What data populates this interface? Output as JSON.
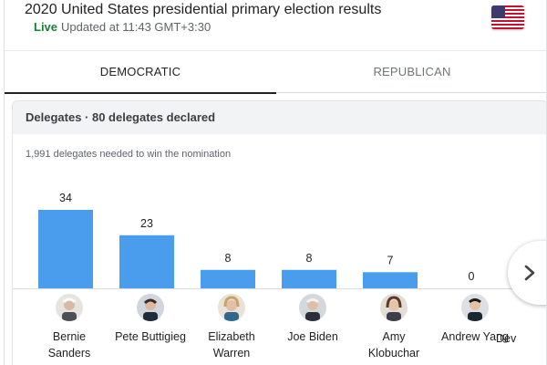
{
  "header": {
    "title": "2020 United States presidential primary election results",
    "live_label": "Live",
    "updated_text": "Updated at 11:43 GMT+3:30",
    "flag_icon": "us-flag-icon"
  },
  "tabs": [
    {
      "label": "DEMOCRATIC",
      "active": true
    },
    {
      "label": "REPUBLICAN",
      "active": false
    }
  ],
  "panel": {
    "title": "Delegates · 80 delegates declared",
    "subtitle": "1,991 delegates needed to win the nomination"
  },
  "colors": {
    "bar": "#4a9ced",
    "live": "#188038"
  },
  "chart_data": {
    "type": "bar",
    "categories": [
      "Bernie Sanders",
      "Pete Buttigieg",
      "Elizabeth Warren",
      "Joe Biden",
      "Amy Klobuchar",
      "Andrew Yang",
      "Dev"
    ],
    "values": [
      34,
      23,
      8,
      8,
      7,
      0,
      null
    ],
    "ylim": [
      0,
      34
    ]
  },
  "candidates": [
    {
      "name_line1": "Bernie",
      "name_line2": "Sanders"
    },
    {
      "name_line1": "Pete Buttigieg",
      "name_line2": ""
    },
    {
      "name_line1": "Elizabeth",
      "name_line2": "Warren"
    },
    {
      "name_line1": "Joe Biden",
      "name_line2": ""
    },
    {
      "name_line1": "Amy",
      "name_line2": "Klobuchar"
    },
    {
      "name_line1": "Andrew Yang",
      "name_line2": ""
    },
    {
      "name_line1": "Dev",
      "name_line2": ""
    }
  ],
  "next_icon": "chevron-right-icon"
}
